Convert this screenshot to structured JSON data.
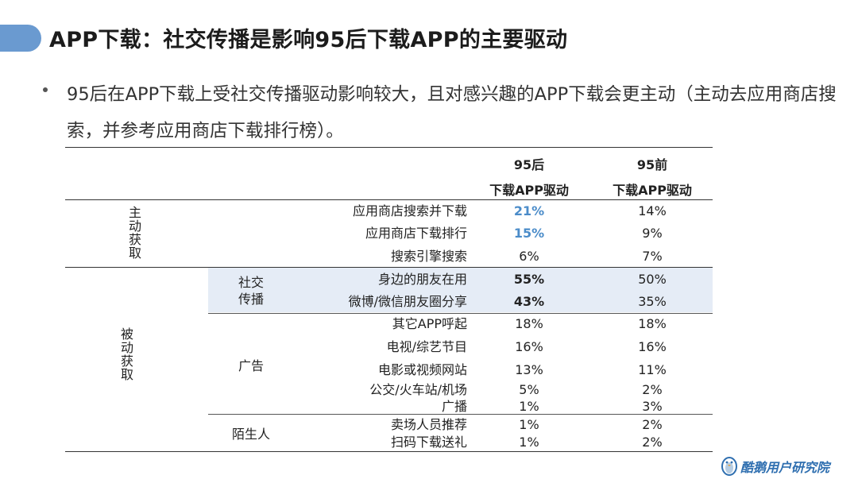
{
  "title": "APP下载：社交传播是影响95后下载APP的主要驱动",
  "bullet": "95后在APP下载上受社交传播驱动影响较大，且对感兴趣的APP下载会更主动（主动去应用商店搜索，并参考应用商店下载排行榜）。",
  "table": {
    "col_headers": [
      {
        "line1": "95后",
        "line2": "下载APP驱动"
      },
      {
        "line1": "95前",
        "line2": "下载APP驱动"
      }
    ],
    "groups": {
      "active": "主动获取",
      "passive": "被动获取",
      "social": "社交传播",
      "ads": "广告",
      "strangers": "陌生人"
    },
    "rows": [
      {
        "label": "应用商店搜索并下载",
        "after95": "21%",
        "before95": "14%"
      },
      {
        "label": "应用商店下载排行",
        "after95": "15%",
        "before95": "9%"
      },
      {
        "label": "搜索引擎搜索",
        "after95": "6%",
        "before95": "7%"
      },
      {
        "label": "身边的朋友在用",
        "after95": "55%",
        "before95": "50%"
      },
      {
        "label": "微博/微信朋友圈分享",
        "after95": "43%",
        "before95": "35%"
      },
      {
        "label": "其它APP呼起",
        "after95": "18%",
        "before95": "18%"
      },
      {
        "label": "电视/综艺节目",
        "after95": "16%",
        "before95": "16%"
      },
      {
        "label": "电影或视频网站",
        "after95": "13%",
        "before95": "11%"
      },
      {
        "label": "公交/火车站/机场",
        "after95": "5%",
        "before95": "2%"
      },
      {
        "label": "广播",
        "after95": "1%",
        "before95": "3%"
      },
      {
        "label": "卖场人员推荐",
        "after95": "1%",
        "before95": "2%"
      },
      {
        "label": "扫码下载送礼",
        "after95": "1%",
        "before95": "2%"
      }
    ]
  },
  "logo": {
    "icon": "penguin-logo-icon",
    "text": "酷鹅用户研究院"
  },
  "colors": {
    "accent": "#6a9ad0",
    "highlight": "#4b8cc9",
    "shade": "#e5ecf6"
  }
}
